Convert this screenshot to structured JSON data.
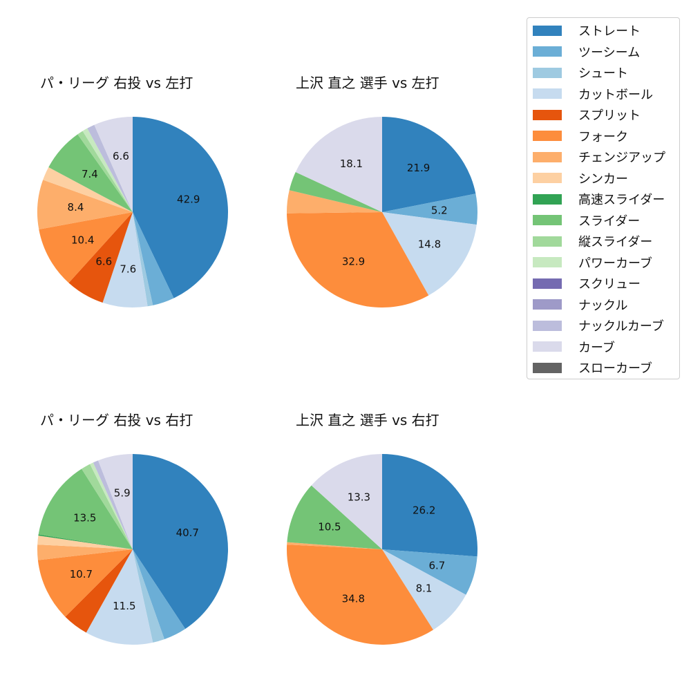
{
  "legend": {
    "items": [
      {
        "label": "ストレート",
        "color": "#3182bd"
      },
      {
        "label": "ツーシーム",
        "color": "#6baed6"
      },
      {
        "label": "シュート",
        "color": "#9ecae1"
      },
      {
        "label": "カットボール",
        "color": "#c6dbef"
      },
      {
        "label": "スプリット",
        "color": "#e6550d"
      },
      {
        "label": "フォーク",
        "color": "#fd8d3c"
      },
      {
        "label": "チェンジアップ",
        "color": "#fdae6b"
      },
      {
        "label": "シンカー",
        "color": "#fdd0a2"
      },
      {
        "label": "高速スライダー",
        "color": "#31a354"
      },
      {
        "label": "スライダー",
        "color": "#74c476"
      },
      {
        "label": "縦スライダー",
        "color": "#a1d99b"
      },
      {
        "label": "パワーカーブ",
        "color": "#c7e9c0"
      },
      {
        "label": "スクリュー",
        "color": "#756bb1"
      },
      {
        "label": "ナックル",
        "color": "#9e9ac8"
      },
      {
        "label": "ナックルカーブ",
        "color": "#bcbddc"
      },
      {
        "label": "カーブ",
        "color": "#dadaeb"
      },
      {
        "label": "スローカーブ",
        "color": "#636363"
      }
    ]
  },
  "chart_data": [
    {
      "type": "pie",
      "title": "パ・リーグ 右投 vs 左打",
      "categories": [
        "ストレート",
        "ツーシーム",
        "シュート",
        "カットボール",
        "スプリット",
        "フォーク",
        "チェンジアップ",
        "シンカー",
        "高速スライダー",
        "スライダー",
        "縦スライダー",
        "パワーカーブ",
        "スクリュー",
        "ナックル",
        "ナックルカーブ",
        "カーブ",
        "スローカーブ"
      ],
      "values": [
        42.9,
        3.7,
        0.9,
        7.6,
        6.6,
        10.4,
        8.4,
        2.3,
        0,
        7.4,
        1.0,
        0.9,
        0,
        0,
        1.3,
        6.6,
        0
      ],
      "labels_shown": [
        "42.9",
        "10.4",
        "8.4"
      ]
    },
    {
      "type": "pie",
      "title": "上沢 直之 選手 vs 左打",
      "categories": [
        "ストレート",
        "ツーシーム",
        "シュート",
        "カットボール",
        "スプリット",
        "フォーク",
        "チェンジアップ",
        "シンカー",
        "高速スライダー",
        "スライダー",
        "縦スライダー",
        "パワーカーブ",
        "スクリュー",
        "ナックル",
        "ナックルカーブ",
        "カーブ",
        "スローカーブ"
      ],
      "values": [
        21.9,
        5.2,
        0,
        14.8,
        0,
        32.9,
        3.9,
        0,
        0,
        3.2,
        0,
        0,
        0,
        0,
        0,
        18.1,
        0
      ],
      "labels_shown": [
        "21.9",
        "5.2",
        "14.8",
        "32.9",
        "18.1"
      ]
    },
    {
      "type": "pie",
      "title": "パ・リーグ 右投 vs 右打",
      "categories": [
        "ストレート",
        "ツーシーム",
        "シュート",
        "カットボール",
        "スプリット",
        "フォーク",
        "チェンジアップ",
        "シンカー",
        "高速スライダー",
        "スライダー",
        "縦スライダー",
        "パワーカーブ",
        "スクリュー",
        "ナックル",
        "ナックルカーブ",
        "カーブ",
        "スローカーブ"
      ],
      "values": [
        40.7,
        3.9,
        2.0,
        11.5,
        4.4,
        10.7,
        2.6,
        1.5,
        0.2,
        13.5,
        1.6,
        0.6,
        0,
        0,
        0.9,
        5.9,
        0
      ],
      "labels_shown": [
        "40.7",
        "11.5",
        "10.7",
        "13.5"
      ]
    },
    {
      "type": "pie",
      "title": "上沢 直之 選手 vs 右打",
      "categories": [
        "ストレート",
        "ツーシーム",
        "シュート",
        "カットボール",
        "スプリット",
        "フォーク",
        "チェンジアップ",
        "シンカー",
        "高速スライダー",
        "スライダー",
        "縦スライダー",
        "パワーカーブ",
        "スクリュー",
        "ナックル",
        "ナックルカーブ",
        "カーブ",
        "スローカーブ"
      ],
      "values": [
        26.2,
        6.7,
        0,
        8.1,
        0,
        34.8,
        0.4,
        0,
        0,
        10.5,
        0,
        0,
        0,
        0,
        0,
        13.3,
        0
      ],
      "labels_shown": [
        "26.2",
        "6.7",
        "8.1",
        "34.8",
        "10.5",
        "13.3"
      ]
    }
  ]
}
